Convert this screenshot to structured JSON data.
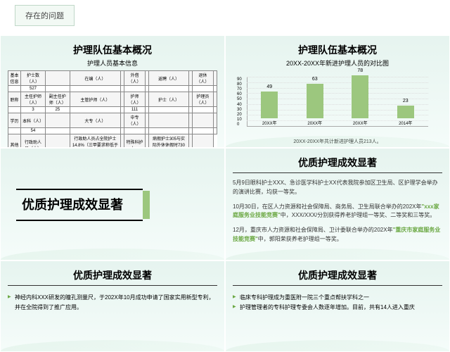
{
  "slide0": {
    "tab": "存在的问题"
  },
  "slide1": {
    "title": "护理队伍基本概况",
    "sub": "护理人员基本信息",
    "rows": [
      [
        "基本信息",
        "护士数（人）",
        "",
        "在编（人）",
        "",
        "外借（人）",
        "",
        "返聘（人）",
        "",
        "退休（人）",
        ""
      ],
      [
        "",
        "527",
        "",
        "",
        "",
        "",
        "",
        "",
        "",
        "",
        ""
      ],
      [
        "职称",
        "主任护师（人）",
        "副主任护师（人）",
        "主管护师（人）",
        "",
        "护师（人）",
        "",
        "护士（人）",
        "",
        "护理员（人）",
        ""
      ],
      [
        "",
        "3",
        "25",
        "",
        "",
        "111",
        "",
        "",
        "",
        "",
        ""
      ],
      [
        "学历",
        "本科（人）",
        "",
        "大专（人）",
        "",
        "中专（人）",
        "",
        "",
        "",
        "",
        ""
      ],
      [
        "",
        "54",
        "",
        "",
        "",
        "",
        "",
        "",
        "",
        "",
        ""
      ],
      [
        "其他",
        "行政助人员（人）",
        "",
        "行政助人员占全院护士14.8%（三甲要求称低于10%）",
        "",
        "特殊科护士：",
        "",
        "病假护士305与实际外休休假时730之比",
        "",
        ""
      ],
      [
        "",
        "51",
        "",
        "",
        "",
        "148人",
        "",
        "",
        "",
        "0.5",
        ""
      ]
    ],
    "note": "注：",
    "noteText": "全年怀孕护士51人，休产假的有5469天，临时借护士73人次，其中按天数共计8213天，共计休假8213天相当于22.69个护士未在编。"
  },
  "slide2": {
    "title": "护理队伍基本概况",
    "sub": "20XX-20XX年新进护理人员的对比图",
    "chart": {
      "categories": [
        "20XX年",
        "20XX年",
        "20XX年",
        "2014年"
      ],
      "values": [
        49,
        63,
        78,
        23
      ],
      "bar_color": "#9cc77e",
      "ylim": [
        0,
        90
      ],
      "ytick": 10,
      "border": "#999"
    },
    "cap": "20XX-20XX年共计新进护理人员213人。"
  },
  "slide3": {
    "title": "优质护理成效显著"
  },
  "slide4": {
    "title": "优质护理成效显著",
    "p1a": "5月9日眼科护士XXX、急诊医学科护士XX代表我院参加区卫生局、区护理学会举办的演讲比赛，均获一等奖。",
    "p2a": "10月30日，在区人力资源和社会保障局、商务局、卫生局联合举办的202X年",
    "p2b": "\"xxx家庭服务业技能竞赛\"",
    "p2c": "中，XXX/XXX/分别获得养老护理组一等奖、二等奖和三等奖。",
    "p3a": "12月，重庆市人力资源和社会保障局、卫计委联合举办的202X年",
    "p3b": "\"重庆市家庭服务业技能竞赛\"",
    "p3c": "中，郭阳荣获养老护理组一等奖。"
  },
  "slide5": {
    "title": "优质护理成效显著",
    "b1": "神经内科XXX研发的瞳孔测量尺，于202X年10月成功申请了国家实用新型专利，并在全院得到了推广应用。"
  },
  "slide6": {
    "title": "优质护理成效显著",
    "b1": "临床专科护理成为重医附一院三个重点帮扶学科之一",
    "b2": "护理管理者的专科护理专委会人数逐年增加。目前，共有14人进入重庆"
  }
}
